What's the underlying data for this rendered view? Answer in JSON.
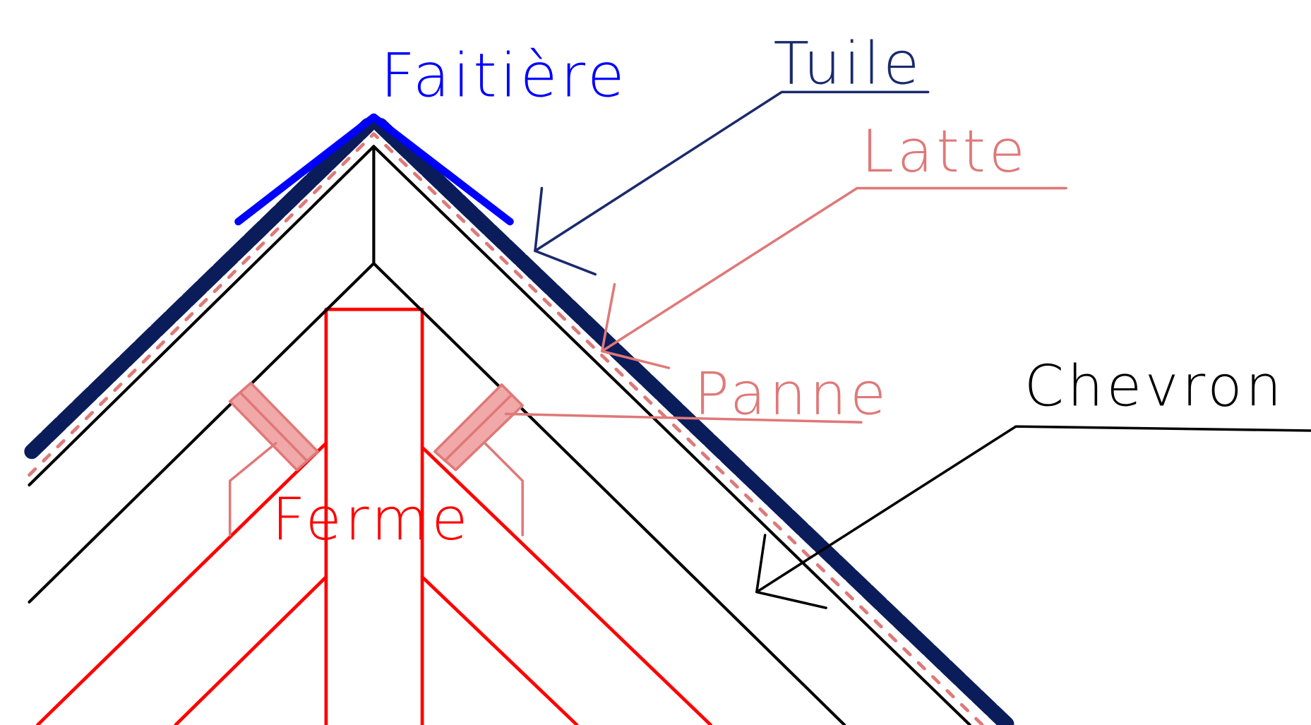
{
  "labels": {
    "faitiere": "Faitière",
    "tuile": "Tuile",
    "latte": "Latte",
    "panne": "Panne",
    "chevron": "Chevron",
    "ferme": "Ferme"
  }
}
